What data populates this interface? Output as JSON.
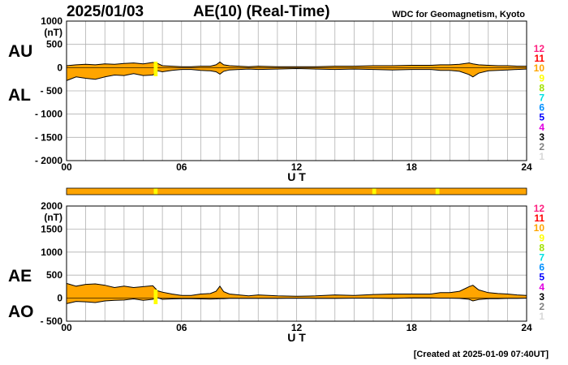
{
  "header": {
    "date": "2025/01/03",
    "title": "AE(10) (Real-Time)",
    "source": "WDC for Geomagnetism, Kyoto"
  },
  "footer": {
    "created": "[Created at 2025-01-09 07:40UT]"
  },
  "colors": {
    "fill": "#ffa500",
    "grid": "#b0b0b0",
    "frame": "#000000",
    "highlight": "#ffff00"
  },
  "station_scale": [
    {
      "label": "12",
      "color": "#ff2080"
    },
    {
      "label": "11",
      "color": "#ff0000"
    },
    {
      "label": "10",
      "color": "#ffa500"
    },
    {
      "label": "9",
      "color": "#ffff00"
    },
    {
      "label": "8",
      "color": "#a0e000"
    },
    {
      "label": "7",
      "color": "#00e0e0"
    },
    {
      "label": "6",
      "color": "#0090ff"
    },
    {
      "label": "5",
      "color": "#0000ff"
    },
    {
      "label": "4",
      "color": "#e000e0"
    },
    {
      "label": "3",
      "color": "#000000"
    },
    {
      "label": "2",
      "color": "#808080"
    },
    {
      "label": "1",
      "color": "#d8d8d8"
    }
  ],
  "station_bar": {
    "base_stations": 10,
    "segments": [
      {
        "start_hour": 4.55,
        "end_hour": 4.75,
        "stations": 9
      },
      {
        "start_hour": 15.95,
        "end_hour": 16.15,
        "stations": 9
      },
      {
        "start_hour": 19.25,
        "end_hour": 19.45,
        "stations": 9
      }
    ]
  },
  "chart_data": [
    {
      "type": "area",
      "panel": "AU/AL",
      "upper_label": "AU",
      "lower_label": "AL",
      "unit": "(nT)",
      "xlabel": "U T",
      "ylim": [
        -2000,
        1000
      ],
      "yticks": [
        "1000",
        "500",
        "0",
        "- 500",
        "- 1000",
        "- 1500",
        "- 2000"
      ],
      "ytick_values": [
        1000,
        500,
        0,
        -500,
        -1000,
        -1500,
        -2000
      ],
      "xlim": [
        0,
        24
      ],
      "xticks": [
        "00",
        "06",
        "12",
        "18",
        "24"
      ],
      "xtick_values": [
        0,
        6,
        12,
        18,
        24
      ],
      "x": [
        0,
        0.5,
        1,
        1.5,
        2,
        2.5,
        3,
        3.5,
        4,
        4.5,
        4.75,
        5,
        5.5,
        6,
        6.5,
        7,
        7.5,
        7.8,
        8,
        8.2,
        8.5,
        9,
        9.5,
        10,
        11,
        12,
        13,
        14,
        15,
        16,
        17,
        18,
        19,
        19.5,
        20,
        20.5,
        21,
        21.2,
        21.5,
        22,
        22.5,
        23,
        23.5,
        24
      ],
      "series": [
        {
          "name": "AU",
          "values": [
            40,
            60,
            70,
            60,
            80,
            70,
            90,
            100,
            80,
            110,
            90,
            40,
            30,
            20,
            20,
            30,
            30,
            60,
            120,
            60,
            40,
            30,
            20,
            30,
            20,
            20,
            20,
            30,
            30,
            40,
            40,
            50,
            50,
            60,
            60,
            70,
            100,
            80,
            60,
            50,
            40,
            40,
            30,
            30
          ]
        },
        {
          "name": "AL",
          "values": [
            -280,
            -200,
            -230,
            -250,
            -200,
            -160,
            -170,
            -130,
            -170,
            -160,
            -70,
            -90,
            -60,
            -40,
            -40,
            -60,
            -70,
            -90,
            -140,
            -80,
            -50,
            -40,
            -30,
            -40,
            -30,
            -20,
            -30,
            -40,
            -30,
            -40,
            -50,
            -40,
            -40,
            -60,
            -60,
            -80,
            -150,
            -200,
            -120,
            -70,
            -60,
            -50,
            -40,
            -30
          ]
        }
      ]
    },
    {
      "type": "area",
      "panel": "AE/AO",
      "upper_label": "AE",
      "lower_label": "AO",
      "unit": "(nT)",
      "xlabel": "U T",
      "ylim": [
        -500,
        2000
      ],
      "yticks": [
        "2000",
        "1500",
        "1000",
        "500",
        "0",
        "- 500"
      ],
      "ytick_values": [
        2000,
        1500,
        1000,
        500,
        0,
        -500
      ],
      "xlim": [
        0,
        24
      ],
      "xticks": [
        "00",
        "06",
        "12",
        "18",
        "24"
      ],
      "xtick_values": [
        0,
        6,
        12,
        18,
        24
      ],
      "x": [
        0,
        0.5,
        1,
        1.5,
        2,
        2.5,
        3,
        3.5,
        4,
        4.5,
        4.75,
        5,
        5.5,
        6,
        6.5,
        7,
        7.5,
        7.8,
        8,
        8.2,
        8.5,
        9,
        9.5,
        10,
        11,
        12,
        13,
        14,
        15,
        16,
        17,
        18,
        19,
        19.5,
        20,
        20.5,
        21,
        21.2,
        21.5,
        22,
        22.5,
        23,
        23.5,
        24
      ],
      "series": [
        {
          "name": "AE",
          "values": [
            320,
            260,
            300,
            310,
            280,
            230,
            260,
            230,
            250,
            270,
            160,
            130,
            90,
            60,
            60,
            90,
            100,
            150,
            260,
            140,
            90,
            70,
            50,
            70,
            50,
            40,
            50,
            70,
            60,
            80,
            90,
            90,
            90,
            120,
            120,
            150,
            250,
            280,
            180,
            120,
            100,
            90,
            70,
            60
          ]
        },
        {
          "name": "AO",
          "values": [
            -120,
            -70,
            -80,
            -95,
            -60,
            -45,
            -40,
            -15,
            -45,
            -25,
            10,
            -25,
            -15,
            -10,
            -10,
            -15,
            -20,
            -15,
            -10,
            -10,
            -5,
            -5,
            -5,
            -5,
            -5,
            0,
            -5,
            -5,
            0,
            0,
            -5,
            5,
            5,
            0,
            0,
            -5,
            -25,
            -60,
            -30,
            -10,
            -10,
            -5,
            -5,
            0
          ]
        }
      ]
    }
  ]
}
